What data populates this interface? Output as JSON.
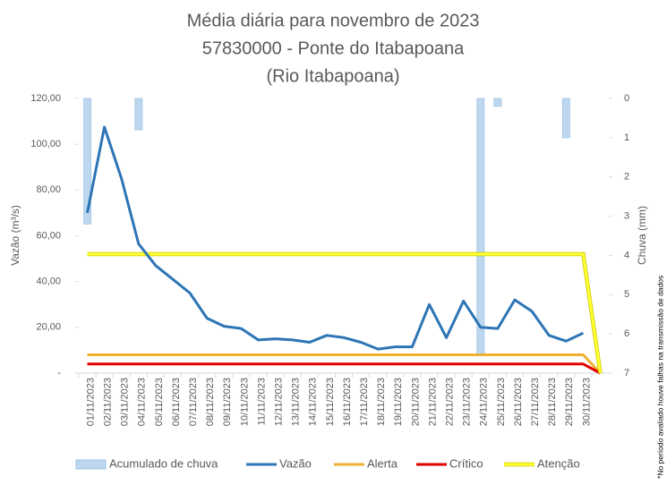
{
  "chart_data": {
    "type": "combo",
    "title_lines": [
      "Média diária para novembro de 2023",
      "57830000 - Ponte do Itabapoana",
      "(Rio Itabapoana)"
    ],
    "y_label": "Vazão (m³/s)",
    "y2_label": "Chuva (mm)",
    "note": "*No período avaliado houve falhas na transmissão de dados",
    "categories": [
      "01/11/2023",
      "02/11/2023",
      "03/11/2023",
      "04/11/2023",
      "05/11/2023",
      "06/11/2023",
      "07/11/2023",
      "08/11/2023",
      "09/11/2023",
      "10/11/2023",
      "11/11/2023",
      "12/11/2023",
      "13/11/2023",
      "14/11/2023",
      "15/11/2023",
      "16/11/2023",
      "17/11/2023",
      "18/11/2023",
      "19/11/2023",
      "20/11/2023",
      "21/11/2023",
      "22/11/2023",
      "23/11/2023",
      "24/11/2023",
      "25/11/2023",
      "26/11/2023",
      "27/11/2023",
      "28/11/2023",
      "29/11/2023",
      "30/11/2023",
      null
    ],
    "ylim": [
      0,
      120
    ],
    "yticks": [
      {
        "value": 0,
        "label": "-"
      },
      {
        "value": 20,
        "label": "20,00"
      },
      {
        "value": 40,
        "label": "40,00"
      },
      {
        "value": 60,
        "label": "60,00"
      },
      {
        "value": 80,
        "label": "80,00"
      },
      {
        "value": 100,
        "label": "100,00"
      },
      {
        "value": 120,
        "label": "120,00"
      }
    ],
    "y2lim": [
      0,
      7
    ],
    "y2ticks": [
      0,
      1,
      2,
      3,
      4,
      5,
      6,
      7
    ],
    "y2_reversed": true,
    "legend": "bottom",
    "series": [
      {
        "name": "Acumulado de chuva",
        "type": "bar",
        "axis": "y2",
        "color": "#bdd7ee",
        "values": [
          3.2,
          0,
          0,
          0.8,
          0,
          0,
          0,
          0,
          0,
          0,
          0,
          0,
          0,
          0,
          0,
          0,
          0,
          0,
          0,
          0,
          0,
          0,
          0,
          6.55,
          0.2,
          0,
          0,
          0,
          1.0,
          0,
          null
        ]
      },
      {
        "name": "Vazão",
        "type": "line",
        "color": "#2e75b6",
        "values": [
          70,
          107.5,
          85,
          56.5,
          47,
          41,
          35,
          24,
          20.5,
          19.5,
          14.5,
          15,
          14.5,
          13.5,
          16.5,
          15.5,
          13.5,
          10.5,
          11.5,
          11.5,
          30,
          15.5,
          31.5,
          20,
          19.5,
          32,
          27,
          16.5,
          14,
          17.5,
          null
        ]
      },
      {
        "name": "Alerta",
        "type": "line",
        "color": "#f0b030",
        "values": [
          8,
          8,
          8,
          8,
          8,
          8,
          8,
          8,
          8,
          8,
          8,
          8,
          8,
          8,
          8,
          8,
          8,
          8,
          8,
          8,
          8,
          8,
          8,
          8,
          8,
          8,
          8,
          8,
          8,
          8,
          0
        ]
      },
      {
        "name": "Crítico",
        "type": "line",
        "color": "#e00000",
        "values": [
          4,
          4,
          4,
          4,
          4,
          4,
          4,
          4,
          4,
          4,
          4,
          4,
          4,
          4,
          4,
          4,
          4,
          4,
          4,
          4,
          4,
          4,
          4,
          4,
          4,
          4,
          4,
          4,
          4,
          4,
          0
        ]
      },
      {
        "name": "Atenção",
        "type": "line",
        "color": "#ffff33",
        "values": [
          52,
          52,
          52,
          52,
          52,
          52,
          52,
          52,
          52,
          52,
          52,
          52,
          52,
          52,
          52,
          52,
          52,
          52,
          52,
          52,
          52,
          52,
          52,
          52,
          52,
          52,
          52,
          52,
          52,
          52,
          0
        ]
      }
    ]
  }
}
